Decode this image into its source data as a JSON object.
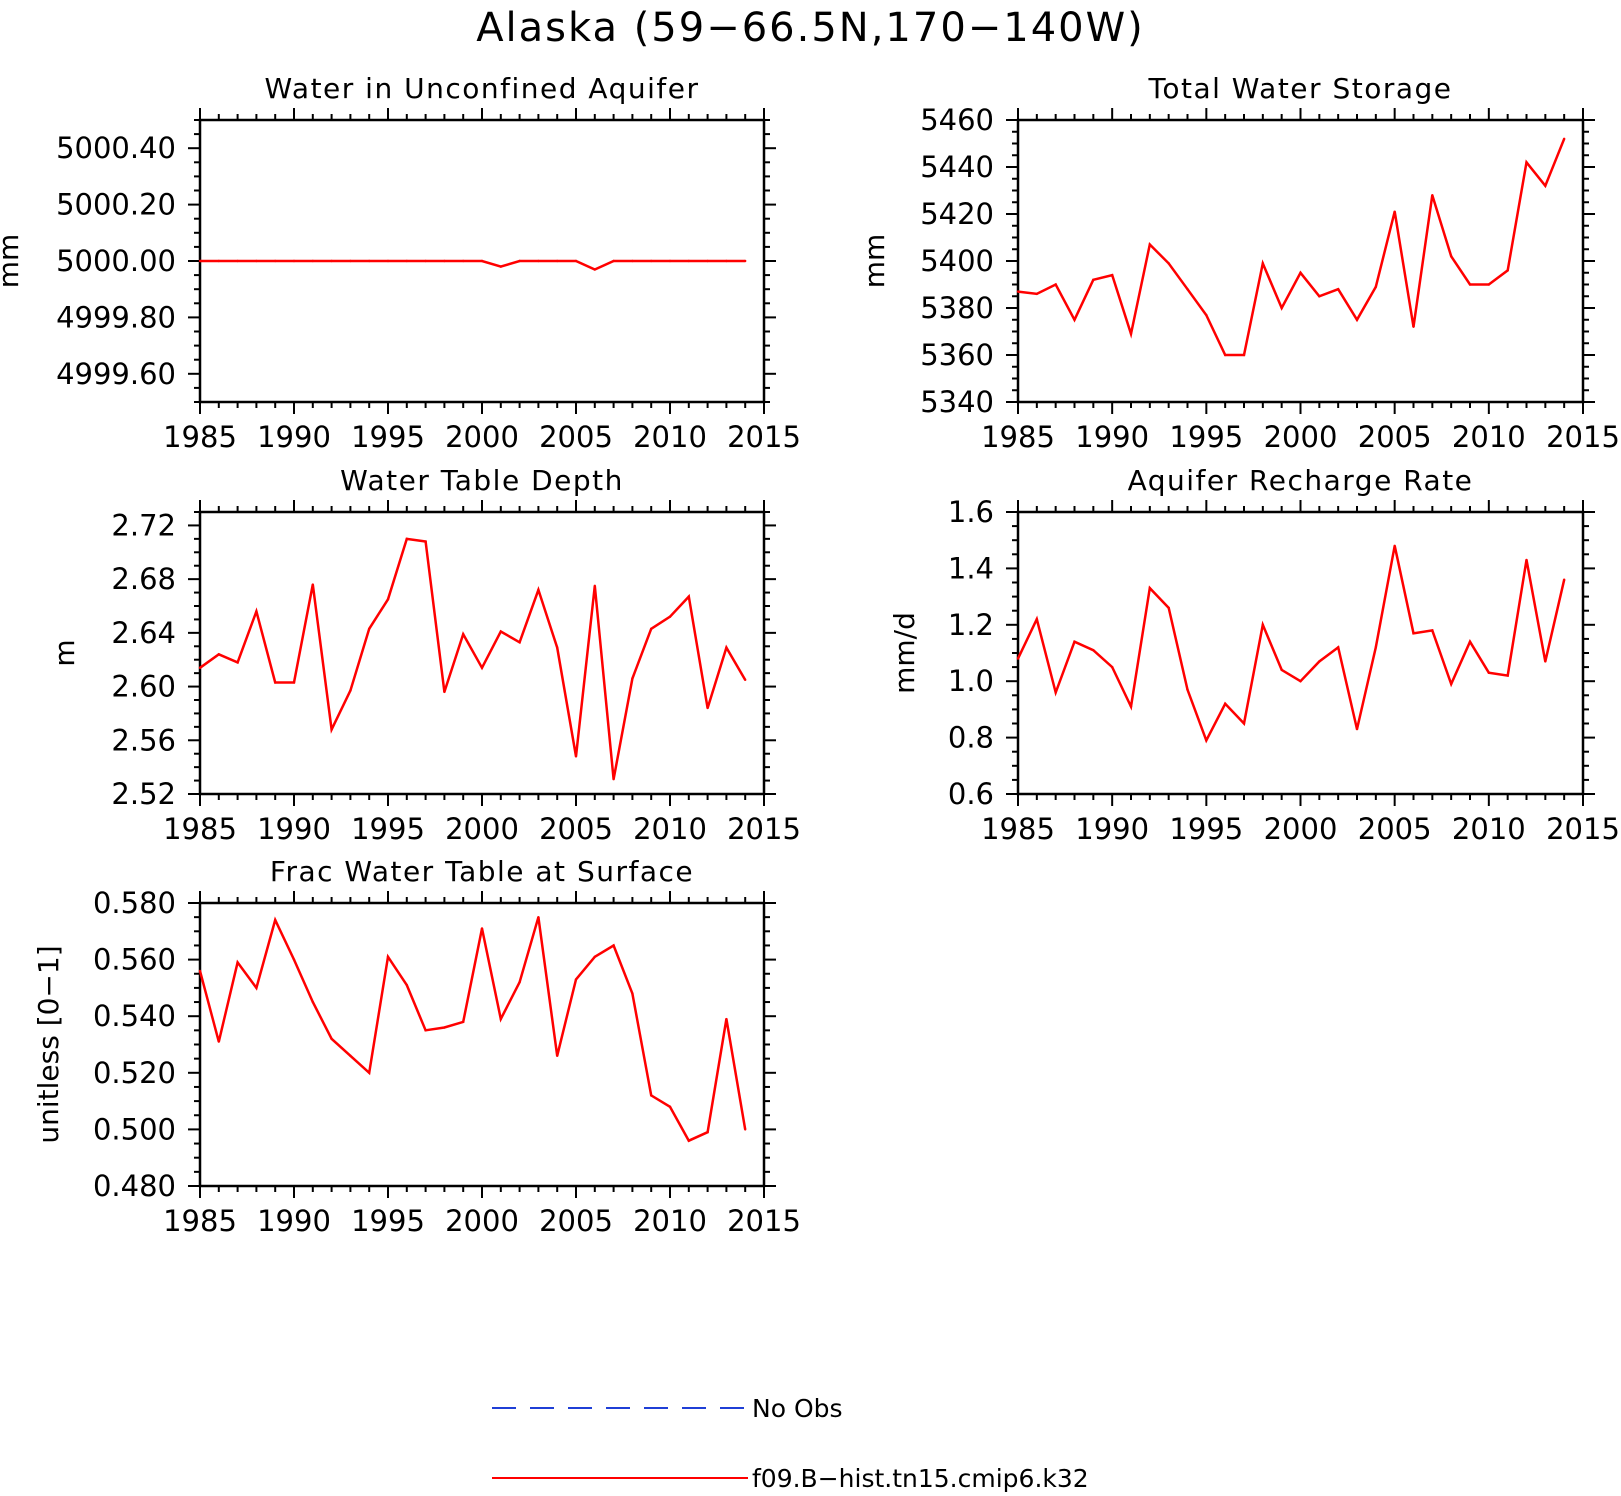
{
  "figure": {
    "title": "Alaska (59−66.5N,170−140W)",
    "legend": [
      {
        "label": "No Obs",
        "color": "#1f3fd6",
        "style": "dashed"
      },
      {
        "label": "f09.B−hist.tn15.cmip6.k32",
        "color": "#ff0000",
        "style": "solid"
      }
    ]
  },
  "chart_data": [
    {
      "type": "line",
      "title": "Water in Unconfined Aquifer",
      "ylabel": "mm",
      "xlim": [
        1985,
        2015
      ],
      "ylim": [
        4999.5,
        5000.5
      ],
      "xticks": [
        1985,
        1990,
        1995,
        2000,
        2005,
        2010,
        2015
      ],
      "yticks": [
        4999.6,
        4999.8,
        5000.0,
        5000.2,
        5000.4
      ],
      "ytick_labels": [
        "4999.60",
        "4999.80",
        "5000.00",
        "5000.20",
        "5000.40"
      ],
      "series": [
        {
          "color": "#ff0000",
          "x": [
            1985,
            1986,
            1987,
            1988,
            1989,
            1990,
            1991,
            1992,
            1993,
            1994,
            1995,
            1996,
            1997,
            1998,
            1999,
            2000,
            2001,
            2002,
            2003,
            2004,
            2005,
            2006,
            2007,
            2008,
            2009,
            2010,
            2011,
            2012,
            2013,
            2014
          ],
          "y": [
            5000.0,
            5000.0,
            5000.0,
            5000.0,
            5000.0,
            5000.0,
            5000.0,
            5000.0,
            5000.0,
            5000.0,
            5000.0,
            5000.0,
            5000.0,
            5000.0,
            5000.0,
            5000.0,
            4999.98,
            5000.0,
            5000.0,
            5000.0,
            5000.0,
            4999.97,
            5000.0,
            5000.0,
            5000.0,
            5000.0,
            5000.0,
            5000.0,
            5000.0,
            5000.0
          ]
        }
      ]
    },
    {
      "type": "line",
      "title": "Total Water Storage",
      "ylabel": "mm",
      "xlim": [
        1985,
        2015
      ],
      "ylim": [
        5340,
        5460
      ],
      "xticks": [
        1985,
        1990,
        1995,
        2000,
        2005,
        2010,
        2015
      ],
      "yticks": [
        5340,
        5360,
        5380,
        5400,
        5420,
        5440,
        5460
      ],
      "ytick_labels": [
        "5340",
        "5360",
        "5380",
        "5400",
        "5420",
        "5440",
        "5460"
      ],
      "series": [
        {
          "color": "#ff0000",
          "x": [
            1985,
            1986,
            1987,
            1988,
            1989,
            1990,
            1991,
            1992,
            1993,
            1994,
            1995,
            1996,
            1997,
            1998,
            1999,
            2000,
            2001,
            2002,
            2003,
            2004,
            2005,
            2006,
            2007,
            2008,
            2009,
            2010,
            2011,
            2012,
            2013,
            2014
          ],
          "y": [
            5387,
            5386,
            5390,
            5375,
            5392,
            5394,
            5369,
            5407,
            5399,
            5388,
            5377,
            5360,
            5360,
            5399,
            5380,
            5395,
            5385,
            5388,
            5375,
            5389,
            5421,
            5372,
            5428,
            5402,
            5390,
            5390,
            5396,
            5442,
            5432,
            5452
          ]
        }
      ]
    },
    {
      "type": "line",
      "title": "Water Table Depth",
      "ylabel": "m",
      "xlim": [
        1985,
        2015
      ],
      "ylim": [
        2.52,
        2.73
      ],
      "xticks": [
        1985,
        1990,
        1995,
        2000,
        2005,
        2010,
        2015
      ],
      "yticks": [
        2.52,
        2.56,
        2.6,
        2.64,
        2.68,
        2.72
      ],
      "ytick_labels": [
        "2.52",
        "2.56",
        "2.60",
        "2.64",
        "2.68",
        "2.72"
      ],
      "series": [
        {
          "color": "#ff0000",
          "x": [
            1985,
            1986,
            1987,
            1988,
            1989,
            1990,
            1991,
            1992,
            1993,
            1994,
            1995,
            1996,
            1997,
            1998,
            1999,
            2000,
            2001,
            2002,
            2003,
            2004,
            2005,
            2006,
            2007,
            2008,
            2009,
            2010,
            2011,
            2012,
            2013,
            2014
          ],
          "y": [
            2.614,
            2.624,
            2.618,
            2.656,
            2.603,
            2.603,
            2.676,
            2.568,
            2.597,
            2.643,
            2.665,
            2.71,
            2.708,
            2.596,
            2.639,
            2.614,
            2.641,
            2.633,
            2.672,
            2.629,
            2.548,
            2.675,
            2.531,
            2.606,
            2.643,
            2.652,
            2.667,
            2.584,
            2.629,
            2.605
          ]
        }
      ]
    },
    {
      "type": "line",
      "title": "Aquifer Recharge Rate",
      "ylabel": "mm/d",
      "xlim": [
        1985,
        2015
      ],
      "ylim": [
        0.6,
        1.6
      ],
      "xticks": [
        1985,
        1990,
        1995,
        2000,
        2005,
        2010,
        2015
      ],
      "yticks": [
        0.6,
        0.8,
        1.0,
        1.2,
        1.4,
        1.6
      ],
      "ytick_labels": [
        "0.6",
        "0.8",
        "1.0",
        "1.2",
        "1.4",
        "1.6"
      ],
      "series": [
        {
          "color": "#ff0000",
          "x": [
            1985,
            1986,
            1987,
            1988,
            1989,
            1990,
            1991,
            1992,
            1993,
            1994,
            1995,
            1996,
            1997,
            1998,
            1999,
            2000,
            2001,
            2002,
            2003,
            2004,
            2005,
            2006,
            2007,
            2008,
            2009,
            2010,
            2011,
            2012,
            2013,
            2014
          ],
          "y": [
            1.08,
            1.22,
            0.96,
            1.14,
            1.11,
            1.05,
            0.91,
            1.33,
            1.26,
            0.97,
            0.79,
            0.92,
            0.85,
            1.2,
            1.04,
            1.0,
            1.07,
            1.12,
            0.83,
            1.12,
            1.48,
            1.17,
            1.18,
            0.99,
            1.14,
            1.03,
            1.02,
            1.43,
            1.07,
            1.36
          ]
        }
      ]
    },
    {
      "type": "line",
      "title": "Frac Water Table at Surface",
      "ylabel": "unitless [0−1]",
      "xlim": [
        1985,
        2015
      ],
      "ylim": [
        0.48,
        0.58
      ],
      "xticks": [
        1985,
        1990,
        1995,
        2000,
        2005,
        2010,
        2015
      ],
      "yticks": [
        0.48,
        0.5,
        0.52,
        0.54,
        0.56,
        0.58
      ],
      "ytick_labels": [
        "0.480",
        "0.500",
        "0.520",
        "0.540",
        "0.560",
        "0.580"
      ],
      "series": [
        {
          "color": "#ff0000",
          "x": [
            1985,
            1986,
            1987,
            1988,
            1989,
            1990,
            1991,
            1992,
            1993,
            1994,
            1995,
            1996,
            1997,
            1998,
            1999,
            2000,
            2001,
            2002,
            2003,
            2004,
            2005,
            2006,
            2007,
            2008,
            2009,
            2010,
            2011,
            2012,
            2013,
            2014
          ],
          "y": [
            0.556,
            0.531,
            0.559,
            0.55,
            0.574,
            0.56,
            0.545,
            0.532,
            0.526,
            0.52,
            0.561,
            0.551,
            0.535,
            0.536,
            0.538,
            0.571,
            0.539,
            0.552,
            0.575,
            0.526,
            0.553,
            0.561,
            0.565,
            0.548,
            0.512,
            0.508,
            0.496,
            0.499,
            0.539,
            0.5
          ]
        }
      ]
    }
  ]
}
